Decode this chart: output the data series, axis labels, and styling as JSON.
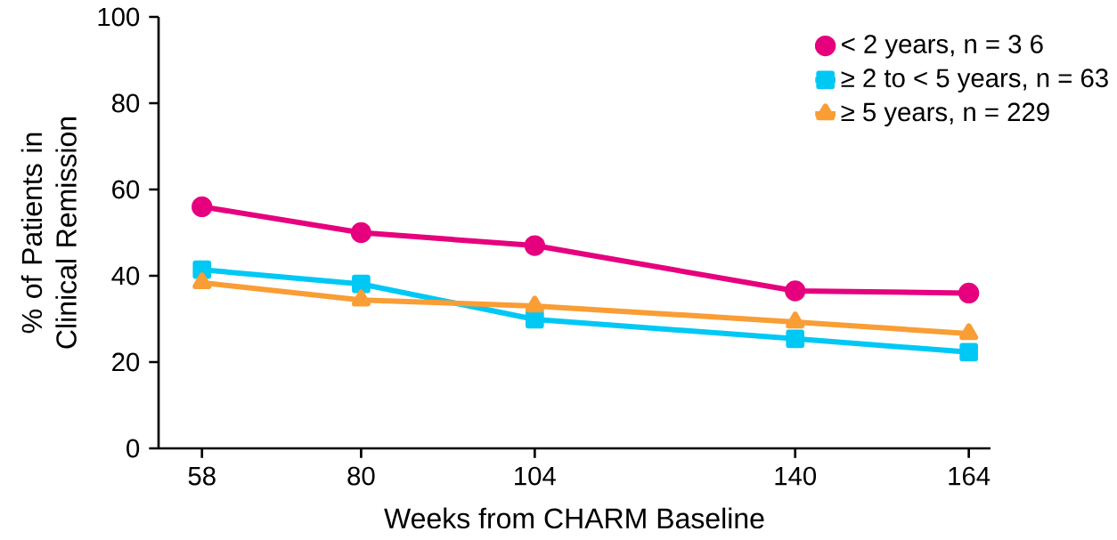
{
  "chart_data": {
    "type": "line",
    "xlabel": "Weeks from CHARM Baseline",
    "ylabel": "% of Patients in Clinical Remission",
    "x": [
      58,
      80,
      104,
      140,
      164
    ],
    "series": [
      {
        "name": "< 2 years, n = 3 6",
        "color": "#e6007e",
        "marker": "circle",
        "values": [
          56,
          50,
          47,
          36.5,
          36
        ]
      },
      {
        "name": "≥ 2 to < 5 years, n = 63",
        "color": "#00c8f5",
        "marker": "square",
        "values": [
          41.4,
          38.1,
          29.9,
          25.4,
          22.3
        ]
      },
      {
        "name": "≥ 5 years, n = 229",
        "color": "#f99d35",
        "marker": "triangle",
        "values": [
          38.4,
          34.4,
          33,
          29.3,
          26.6
        ]
      }
    ],
    "xlim": [
      52,
      167
    ],
    "ylim": [
      0,
      100
    ],
    "xticks": [
      58,
      80,
      104,
      140,
      164
    ],
    "yticks": [
      0,
      20,
      40,
      60,
      80,
      100
    ],
    "grid": false,
    "legend": "top right",
    "line_style": "solid"
  }
}
